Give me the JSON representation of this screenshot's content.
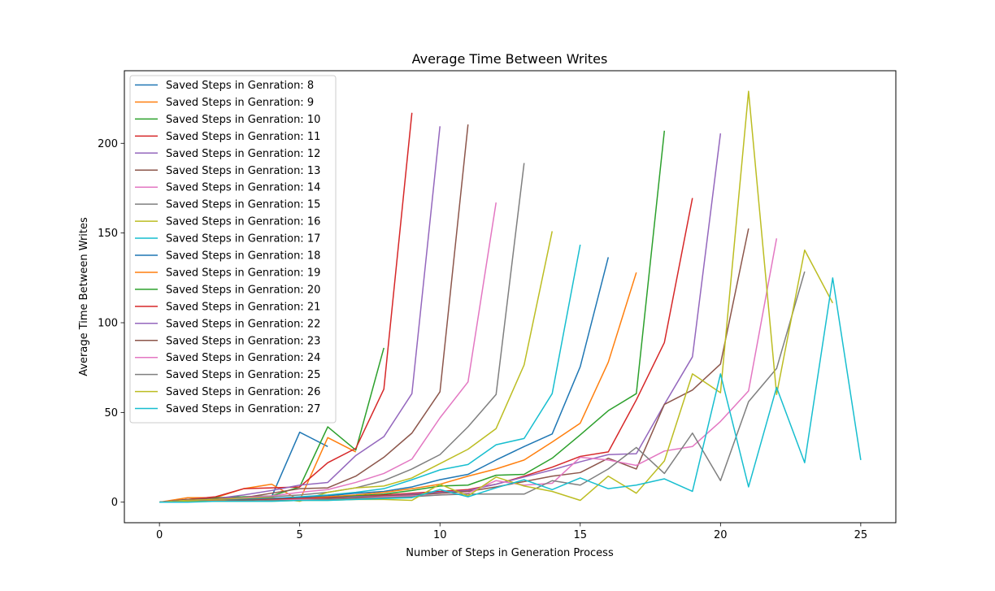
{
  "chart_data": {
    "type": "line",
    "title": "Average Time Between Writes",
    "xlabel": "Number of Steps in Generation Process",
    "ylabel": "Average Time Between Writes",
    "xlim": [
      -1.25,
      26.25
    ],
    "ylim": [
      -11.45,
      240.45
    ],
    "xticks": [
      0,
      5,
      10,
      15,
      20,
      25
    ],
    "yticks": [
      0,
      50,
      100,
      150,
      200
    ],
    "grid": false,
    "legend_position": "upper left",
    "series": [
      {
        "name": "Saved Steps in Genration: 8",
        "color": "#1f77b4",
        "values": [
          0,
          1,
          2,
          3,
          3,
          39,
          31
        ]
      },
      {
        "name": "Saved Steps in Genration: 9",
        "color": "#ff7f0e",
        "values": [
          0,
          2.5,
          2.5,
          7.5,
          10,
          1,
          36,
          28
        ]
      },
      {
        "name": "Saved Steps in Genration: 10",
        "color": "#2ca02c",
        "values": [
          0,
          1.5,
          2.5,
          3,
          3.5,
          8.5,
          42,
          29,
          86
        ]
      },
      {
        "name": "Saved Steps in Genration: 11",
        "color": "#d62728",
        "values": [
          0,
          1.5,
          3,
          7.5,
          8,
          8.5,
          22,
          30,
          63,
          217
        ]
      },
      {
        "name": "Saved Steps in Genration: 12",
        "color": "#9467bd",
        "values": [
          0,
          1.5,
          2,
          4,
          6.5,
          9.5,
          11,
          26,
          36.5,
          60.5,
          209.5
        ]
      },
      {
        "name": "Saved Steps in Genration: 13",
        "color": "#8c564b",
        "values": [
          0,
          1.5,
          2,
          2.5,
          5,
          7.5,
          8,
          14.5,
          25,
          38.5,
          61.5,
          210.5
        ]
      },
      {
        "name": "Saved Steps in Genration: 14",
        "color": "#e377c2",
        "values": [
          0,
          1,
          1.5,
          2.5,
          3.5,
          5.5,
          7,
          11,
          16,
          24,
          47,
          67,
          167
        ]
      },
      {
        "name": "Saved Steps in Genration: 15",
        "color": "#7f7f7f",
        "values": [
          0,
          1,
          1.5,
          2,
          3,
          4,
          5.5,
          8,
          12,
          18.5,
          26.5,
          42,
          60,
          189
        ]
      },
      {
        "name": "Saved Steps in Genration: 16",
        "color": "#bcbd22",
        "values": [
          0,
          1,
          1.5,
          2,
          2.5,
          0.5,
          5.5,
          8,
          9,
          13.5,
          21.5,
          29.5,
          41,
          76.5,
          151
        ]
      },
      {
        "name": "Saved Steps in Genration: 17",
        "color": "#17becf",
        "values": [
          0,
          0.5,
          1,
          1.5,
          2,
          3,
          4,
          5.5,
          7.5,
          12.5,
          18,
          21,
          32,
          35.5,
          60.5,
          143.5
        ]
      },
      {
        "name": "Saved Steps in Genration: 18",
        "color": "#1f77b4",
        "values": [
          0,
          0.5,
          1,
          1.5,
          2,
          2.5,
          3.5,
          5,
          6,
          8.5,
          12.5,
          15.5,
          23.5,
          31,
          38,
          75.5,
          136.5
        ]
      },
      {
        "name": "Saved Steps in Genration: 19",
        "color": "#ff7f0e",
        "values": [
          0,
          0.5,
          1,
          1,
          1.5,
          2,
          3,
          4,
          5.5,
          7.5,
          10,
          14.5,
          18.5,
          23.5,
          33.5,
          44,
          78,
          128
        ]
      },
      {
        "name": "Saved Steps in Genration: 20",
        "color": "#2ca02c",
        "values": [
          0,
          0.5,
          0.5,
          1,
          1.5,
          2,
          2.5,
          3.5,
          4.5,
          6.5,
          9,
          9.5,
          15,
          15.5,
          24.5,
          37.5,
          51,
          60.5,
          207
        ]
      },
      {
        "name": "Saved Steps in Genration: 21",
        "color": "#d62728",
        "values": [
          0,
          0.5,
          0.5,
          1,
          1.5,
          2,
          2.5,
          3,
          4,
          5,
          6,
          7,
          10,
          14.5,
          19.5,
          25.5,
          28,
          57,
          89,
          169.5
        ]
      },
      {
        "name": "Saved Steps in Genration: 22",
        "color": "#9467bd",
        "values": [
          0,
          0.5,
          0.5,
          1,
          1,
          1.5,
          2,
          3,
          3.5,
          4.5,
          5.5,
          6.5,
          10,
          14,
          18,
          22.5,
          26.5,
          27,
          54.5,
          81,
          205.5
        ]
      },
      {
        "name": "Saved Steps in Genration: 23",
        "color": "#8c564b",
        "values": [
          0,
          0.5,
          0.5,
          1,
          1,
          1.5,
          2,
          2.5,
          3.5,
          4,
          5,
          6,
          8.5,
          11.5,
          14.5,
          16.5,
          24.5,
          18.5,
          54.5,
          62.5,
          77,
          152.5
        ]
      },
      {
        "name": "Saved Steps in Genration: 24",
        "color": "#e377c2",
        "values": [
          0,
          0.5,
          0.5,
          0.5,
          1,
          1.5,
          1.5,
          2,
          3,
          3.5,
          4,
          5,
          12,
          9.5,
          10.5,
          25,
          23.5,
          20.5,
          28.5,
          31,
          45,
          62,
          147
        ]
      },
      {
        "name": "Saved Steps in Genration: 25",
        "color": "#7f7f7f",
        "values": [
          0,
          0.5,
          0.5,
          0.5,
          1,
          1,
          1.5,
          2,
          2.5,
          3,
          4,
          4.5,
          4.5,
          4.5,
          12,
          9.5,
          18.5,
          30.5,
          16,
          38.5,
          12,
          56,
          74.5,
          128.5
        ]
      },
      {
        "name": "Saved Steps in Genration: 26",
        "color": "#bcbd22",
        "values": [
          0,
          0.5,
          0.5,
          0.5,
          0.5,
          1,
          1,
          1.5,
          1.5,
          1,
          10,
          3.5,
          14,
          9,
          6,
          1,
          14.5,
          5,
          23,
          71.5,
          61,
          229,
          60,
          140.5,
          111
        ]
      },
      {
        "name": "Saved Steps in Genration: 27",
        "color": "#17becf",
        "values": [
          0,
          0,
          0.5,
          0.5,
          0.5,
          1,
          1,
          1.5,
          2,
          2.5,
          7,
          3,
          8,
          12.5,
          7,
          13.5,
          7.5,
          9.5,
          13,
          6,
          71.5,
          8.5,
          64,
          22,
          125,
          23.5
        ]
      }
    ]
  }
}
